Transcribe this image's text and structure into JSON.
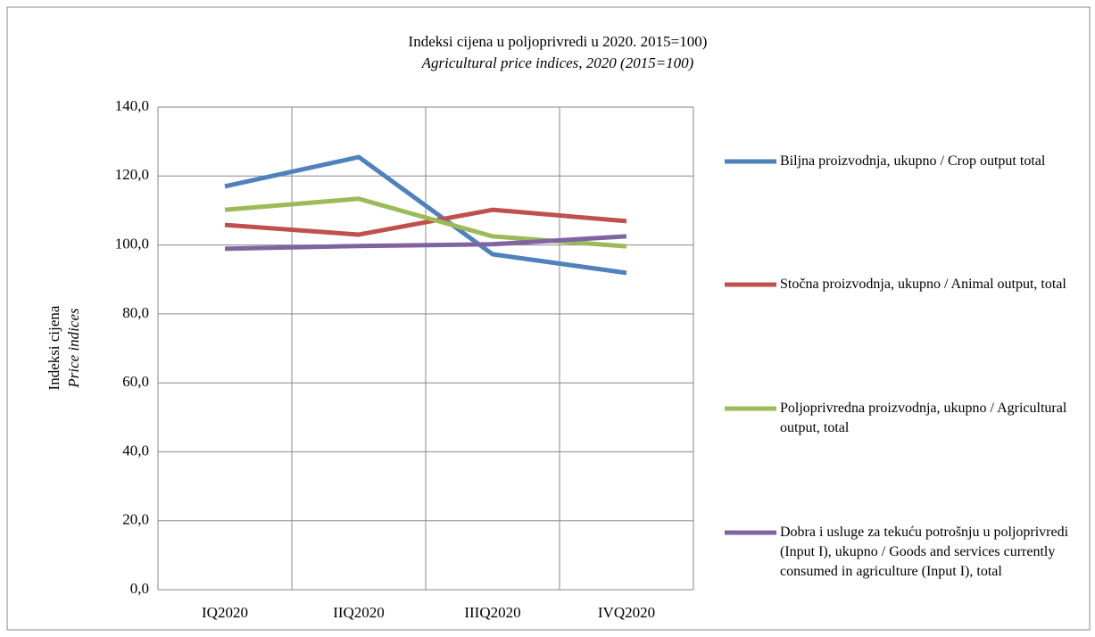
{
  "chart_data": {
    "type": "line",
    "title": "Indeksi cijena u poljoprivredi u 2020. 2015=100)",
    "subtitle": "Agricultural price indices, 2020 (2015=100)",
    "ylabel": "Indeksi cijena",
    "ylabel_subtitle": "Price indices",
    "categories": [
      "IQ2020",
      "IIQ2020",
      "IIIQ2020",
      "IVQ2020"
    ],
    "series": [
      {
        "name": "Biljna proizvodnja, ukupno / Crop output total",
        "color": "#4f81bd",
        "values": [
          117.0,
          125.5,
          97.3,
          91.9
        ]
      },
      {
        "name": "Stočna proizvodnja, ukupno / Animal output, total",
        "color": "#c0504d",
        "values": [
          105.8,
          103.0,
          110.2,
          106.9
        ]
      },
      {
        "name": "Poljoprivredna proizvodnja, ukupno / Agricultural output, total",
        "color": "#9bbb59",
        "values": [
          110.2,
          113.4,
          102.5,
          99.6
        ]
      },
      {
        "name": "Dobra i usluge za tekuću potrošnju u poljoprivredi (Input I), ukupno / Goods and services currently consumed in agriculture (Input I), total",
        "color": "#8064a2",
        "values": [
          98.9,
          99.7,
          100.2,
          102.5
        ]
      }
    ],
    "ylim": [
      0,
      140
    ],
    "yticks": [
      {
        "value": 0,
        "label": "0,0"
      },
      {
        "value": 20,
        "label": "20,0"
      },
      {
        "value": 40,
        "label": "40,0"
      },
      {
        "value": 60,
        "label": "60,0"
      },
      {
        "value": 80,
        "label": "80,0"
      },
      {
        "value": 100,
        "label": "100,0"
      },
      {
        "value": 120,
        "label": "120,0"
      },
      {
        "value": 140,
        "label": "140,0"
      }
    ],
    "grid": true,
    "legend": "right"
  }
}
